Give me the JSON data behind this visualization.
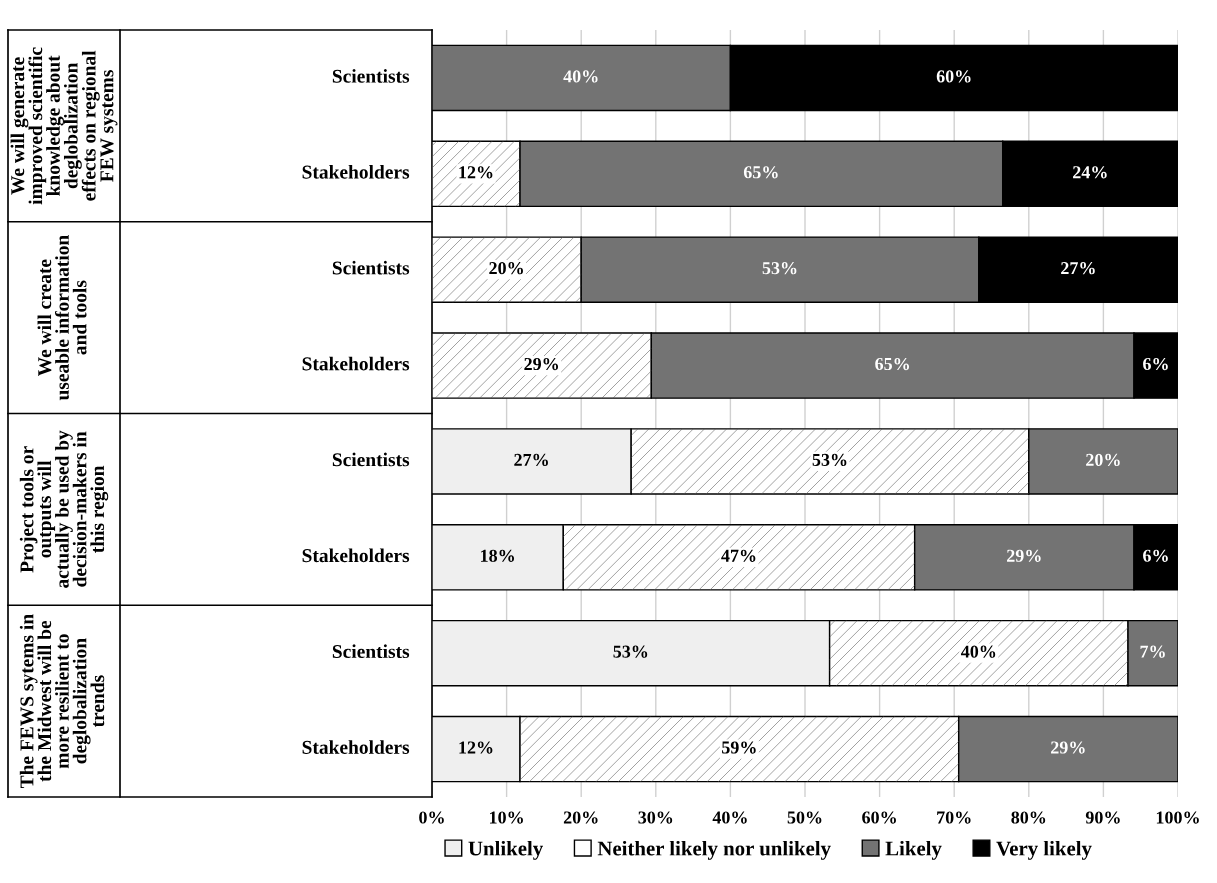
{
  "chart_data": {
    "type": "bar",
    "orientation": "horizontal",
    "stacked": true,
    "categories": [
      "Scientists",
      "Stakeholders",
      "Scientists",
      "Stakeholders",
      "Scientists",
      "Stakeholders",
      "Scientists",
      "Stakeholders"
    ],
    "series": [
      {
        "name": "Unlikely",
        "color": "#efefef",
        "values": [
          0,
          0,
          0,
          0,
          26.7,
          17.6,
          53.3,
          11.8
        ],
        "value_labels": [
          null,
          null,
          null,
          null,
          "27%",
          "18%",
          "53%",
          "12%"
        ]
      },
      {
        "name": "Neither likely nor unlikely",
        "color": "#ffffff",
        "values": [
          0,
          11.8,
          20,
          29.4,
          53.3,
          47.1,
          40,
          58.8
        ],
        "value_labels": [
          null,
          "12%",
          "20%",
          "29%",
          "53%",
          "47%",
          "40%",
          "59%"
        ]
      },
      {
        "name": "Likely",
        "color": "#737373",
        "values": [
          40,
          64.7,
          53.3,
          64.7,
          20,
          29.4,
          6.7,
          29.4
        ],
        "value_labels": [
          "40%",
          "65%",
          "53%",
          "65%",
          "20%",
          "29%",
          "7%",
          "29%"
        ]
      },
      {
        "name": "Very likely",
        "color": "#000000",
        "values": [
          60,
          23.5,
          26.7,
          5.9,
          0,
          5.9,
          0,
          0
        ],
        "value_labels": [
          "60%",
          "24%",
          "27%",
          "6%",
          null,
          "6%",
          null,
          null
        ]
      }
    ],
    "xlim": [
      0,
      100
    ],
    "xticks": [
      {
        "value": 0,
        "label": "0%"
      },
      {
        "value": 10,
        "label": "10%"
      },
      {
        "value": 20,
        "label": "20%"
      },
      {
        "value": 30,
        "label": "30%"
      },
      {
        "value": 40,
        "label": "40%"
      },
      {
        "value": 50,
        "label": "50%"
      },
      {
        "value": 60,
        "label": "60%"
      },
      {
        "value": 70,
        "label": "70%"
      },
      {
        "value": 80,
        "label": "80%"
      },
      {
        "value": 90,
        "label": "90%"
      },
      {
        "value": 100,
        "label": "100%"
      }
    ],
    "annotations": [
      "We will generate improved scientific knowledge about deglobalization effects on regional FEW systems",
      "We will create useable information and tools",
      "Project tools or outputs will actually be used by decision-makers in this region",
      "The FEWS sytems in the Midwest will be more resilient to deglobalization trends"
    ],
    "grid": "x",
    "legend": "bottom"
  }
}
